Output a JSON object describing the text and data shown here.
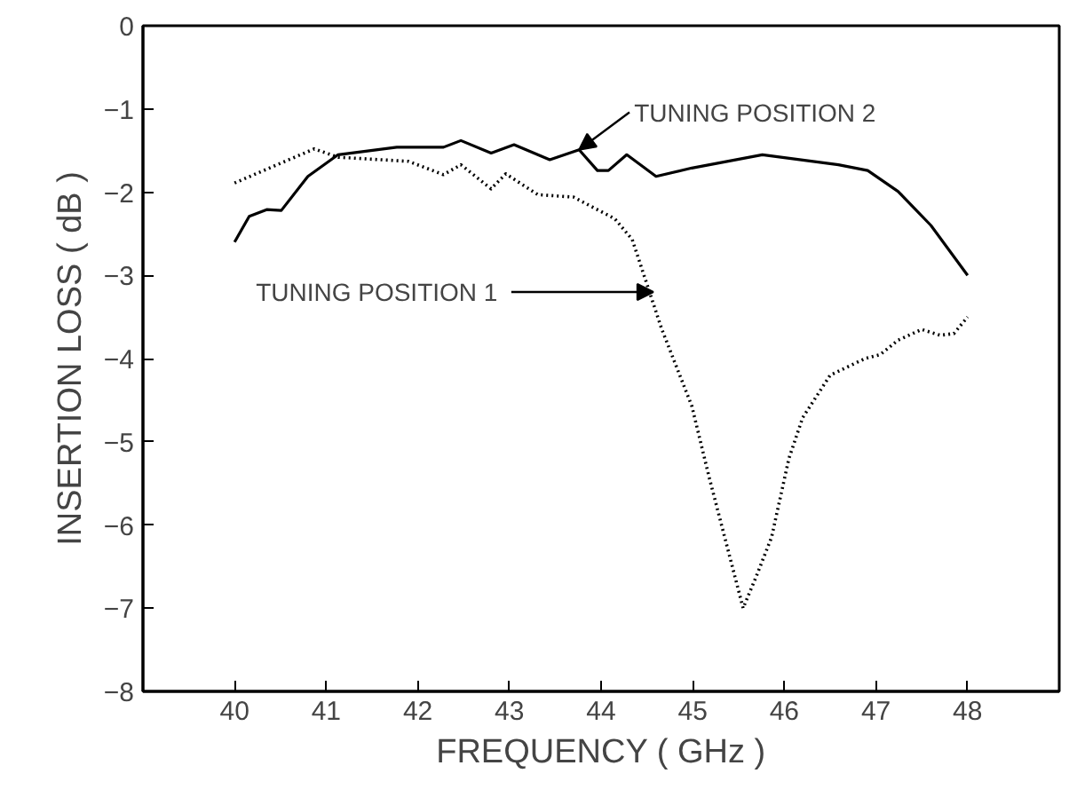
{
  "chart_data": {
    "type": "line",
    "xlabel": "FREQUENCY ( GHz )",
    "ylabel": "INSERTION LOSS ( dB )",
    "xlim": [
      39,
      49
    ],
    "xticks": [
      40,
      41,
      42,
      43,
      44,
      45,
      46,
      47,
      48
    ],
    "ylim": [
      -8,
      0
    ],
    "yticks": [
      -8,
      -7,
      -6,
      -5,
      -4,
      -3,
      -2,
      -1,
      0
    ],
    "grid": false,
    "series": [
      {
        "color": "#000000",
        "line_style": "dotted",
        "x": [
          40.0,
          40.55,
          40.87,
          41.13,
          41.9,
          42.28,
          42.47,
          42.8,
          42.96,
          43.31,
          43.7,
          44.15,
          44.34,
          44.66,
          44.99,
          45.18,
          45.55,
          45.7,
          45.86,
          46.05,
          46.2,
          46.5,
          46.88,
          47.05,
          47.24,
          47.5,
          47.7,
          47.85,
          48.0
        ],
        "values": [
          -1.89,
          -1.63,
          -1.48,
          -1.58,
          -1.63,
          -1.79,
          -1.67,
          -1.96,
          -1.78,
          -2.03,
          -2.06,
          -2.32,
          -2.57,
          -3.64,
          -4.57,
          -5.43,
          -7.0,
          -6.6,
          -6.15,
          -5.2,
          -4.71,
          -4.2,
          -4.0,
          -3.95,
          -3.78,
          -3.65,
          -3.72,
          -3.7,
          -3.5
        ]
      },
      {
        "color": "#000000",
        "line_style": "solid",
        "x": [
          40.0,
          40.16,
          40.35,
          40.51,
          40.8,
          41.13,
          41.77,
          42.28,
          42.47,
          42.8,
          43.05,
          43.44,
          43.76,
          43.96,
          44.08,
          44.28,
          44.6,
          44.99,
          45.76,
          46.59,
          46.91,
          47.24,
          47.6,
          48.0
        ],
        "values": [
          -2.6,
          -2.29,
          -2.21,
          -2.22,
          -1.81,
          -1.55,
          -1.46,
          -1.46,
          -1.38,
          -1.53,
          -1.43,
          -1.61,
          -1.49,
          -1.74,
          -1.74,
          -1.55,
          -1.81,
          -1.71,
          -1.55,
          -1.67,
          -1.74,
          -1.99,
          -2.4,
          -3.0
        ]
      }
    ],
    "annotations": [
      {
        "text": "TUNING POSITION 2",
        "x": 43.76,
        "y": -1.49
      },
      {
        "text": "TUNING POSITION 1",
        "x": 44.62,
        "y": -3.2
      }
    ]
  }
}
